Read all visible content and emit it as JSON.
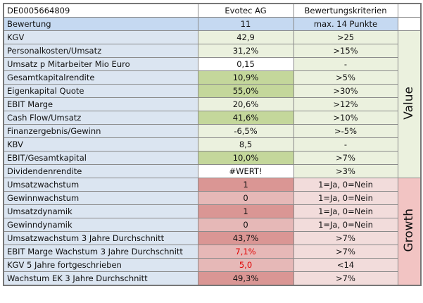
{
  "header": [
    "DE0005664809",
    "Evotec AG",
    "Bewertungskriterien"
  ],
  "score_row": [
    "Bewertung",
    "11",
    "max. 14 Punkte"
  ],
  "groups": [
    {
      "label": "Value",
      "rows": [
        [
          "KGV",
          "42,9",
          ">25"
        ],
        [
          "Personalkosten/Umsatz",
          "31,2%",
          ">15%"
        ],
        [
          "Umsatz p Mitarbeiter Mio Euro",
          "0,15",
          "-"
        ],
        [
          "Gesamtkapitalrendite",
          "10,9%",
          ">5%"
        ],
        [
          "Eigenkapital Quote",
          "55,0%",
          ">30%"
        ],
        [
          "EBIT Marge",
          "20,6%",
          ">12%"
        ],
        [
          "Cash Flow/Umsatz",
          "41,6%",
          ">10%"
        ],
        [
          "Finanzergebnis/Gewinn",
          "-6,5%",
          ">-5%"
        ],
        [
          "KBV",
          "8,5",
          "-"
        ],
        [
          "EBIT/Gesamtkapital",
          "10,0%",
          ">7%"
        ],
        [
          "Dividendenrendite",
          "#WERT!",
          ">3%"
        ]
      ]
    },
    {
      "label": "Growth",
      "rows": [
        [
          "Umsatzwachstum",
          "1",
          "1=Ja, 0=Nein"
        ],
        [
          "Gewinnwachstum",
          "0",
          "1=Ja, 0=Nein"
        ],
        [
          "Umsatzdynamik",
          "1",
          "1=Ja, 0=Nein"
        ],
        [
          "Gewinndynamik",
          "0",
          "1=Ja, 0=Nein"
        ],
        [
          "Umsatzwachstum 3 Jahre Durchschnitt",
          "43,7%",
          ">7%"
        ],
        [
          "EBIT Marge Wachstum 3 Jahre Durchschnitt",
          "7,1%",
          ">7%"
        ],
        [
          "KGV 5 Jahre fortgeschrieben",
          "5,0",
          "<14"
        ],
        [
          "Wachstum EK 3 Jahre Durchschnitt",
          "49,3%",
          ">7%"
        ]
      ]
    }
  ]
}
